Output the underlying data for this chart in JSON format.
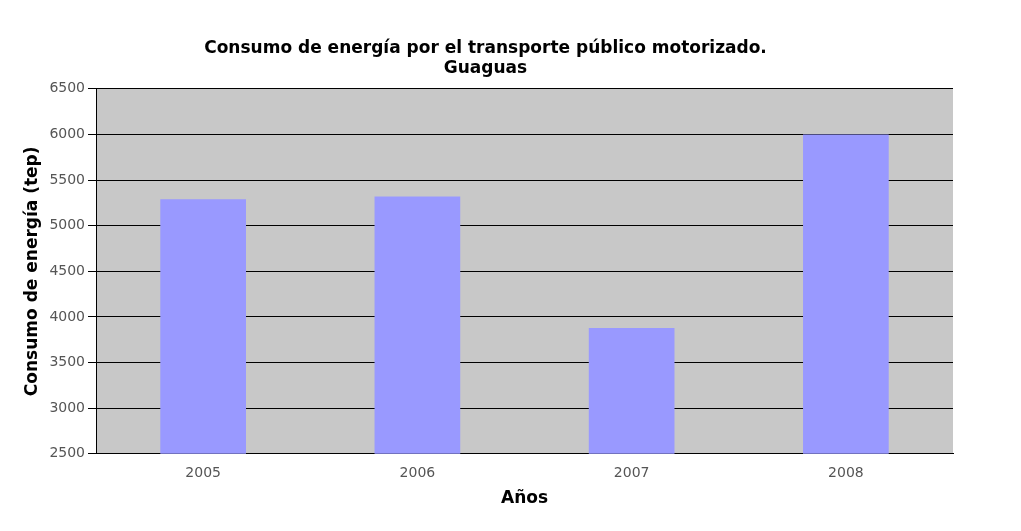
{
  "chart_data": {
    "type": "bar",
    "title": [
      "Consumo de energía por el transporte público motorizado.",
      "Guaguas"
    ],
    "xlabel": "Años",
    "ylabel": "Consumo de energía (tep)",
    "categories": [
      "2005",
      "2006",
      "2007",
      "2008"
    ],
    "values": [
      5290,
      5320,
      3880,
      6000
    ],
    "color": "#9999ff",
    "ylim": [
      2500,
      6500
    ],
    "yticks": [
      2500,
      3000,
      3500,
      4000,
      4500,
      5000,
      5500,
      6000,
      6500
    ],
    "grid": "y",
    "legend": false
  }
}
